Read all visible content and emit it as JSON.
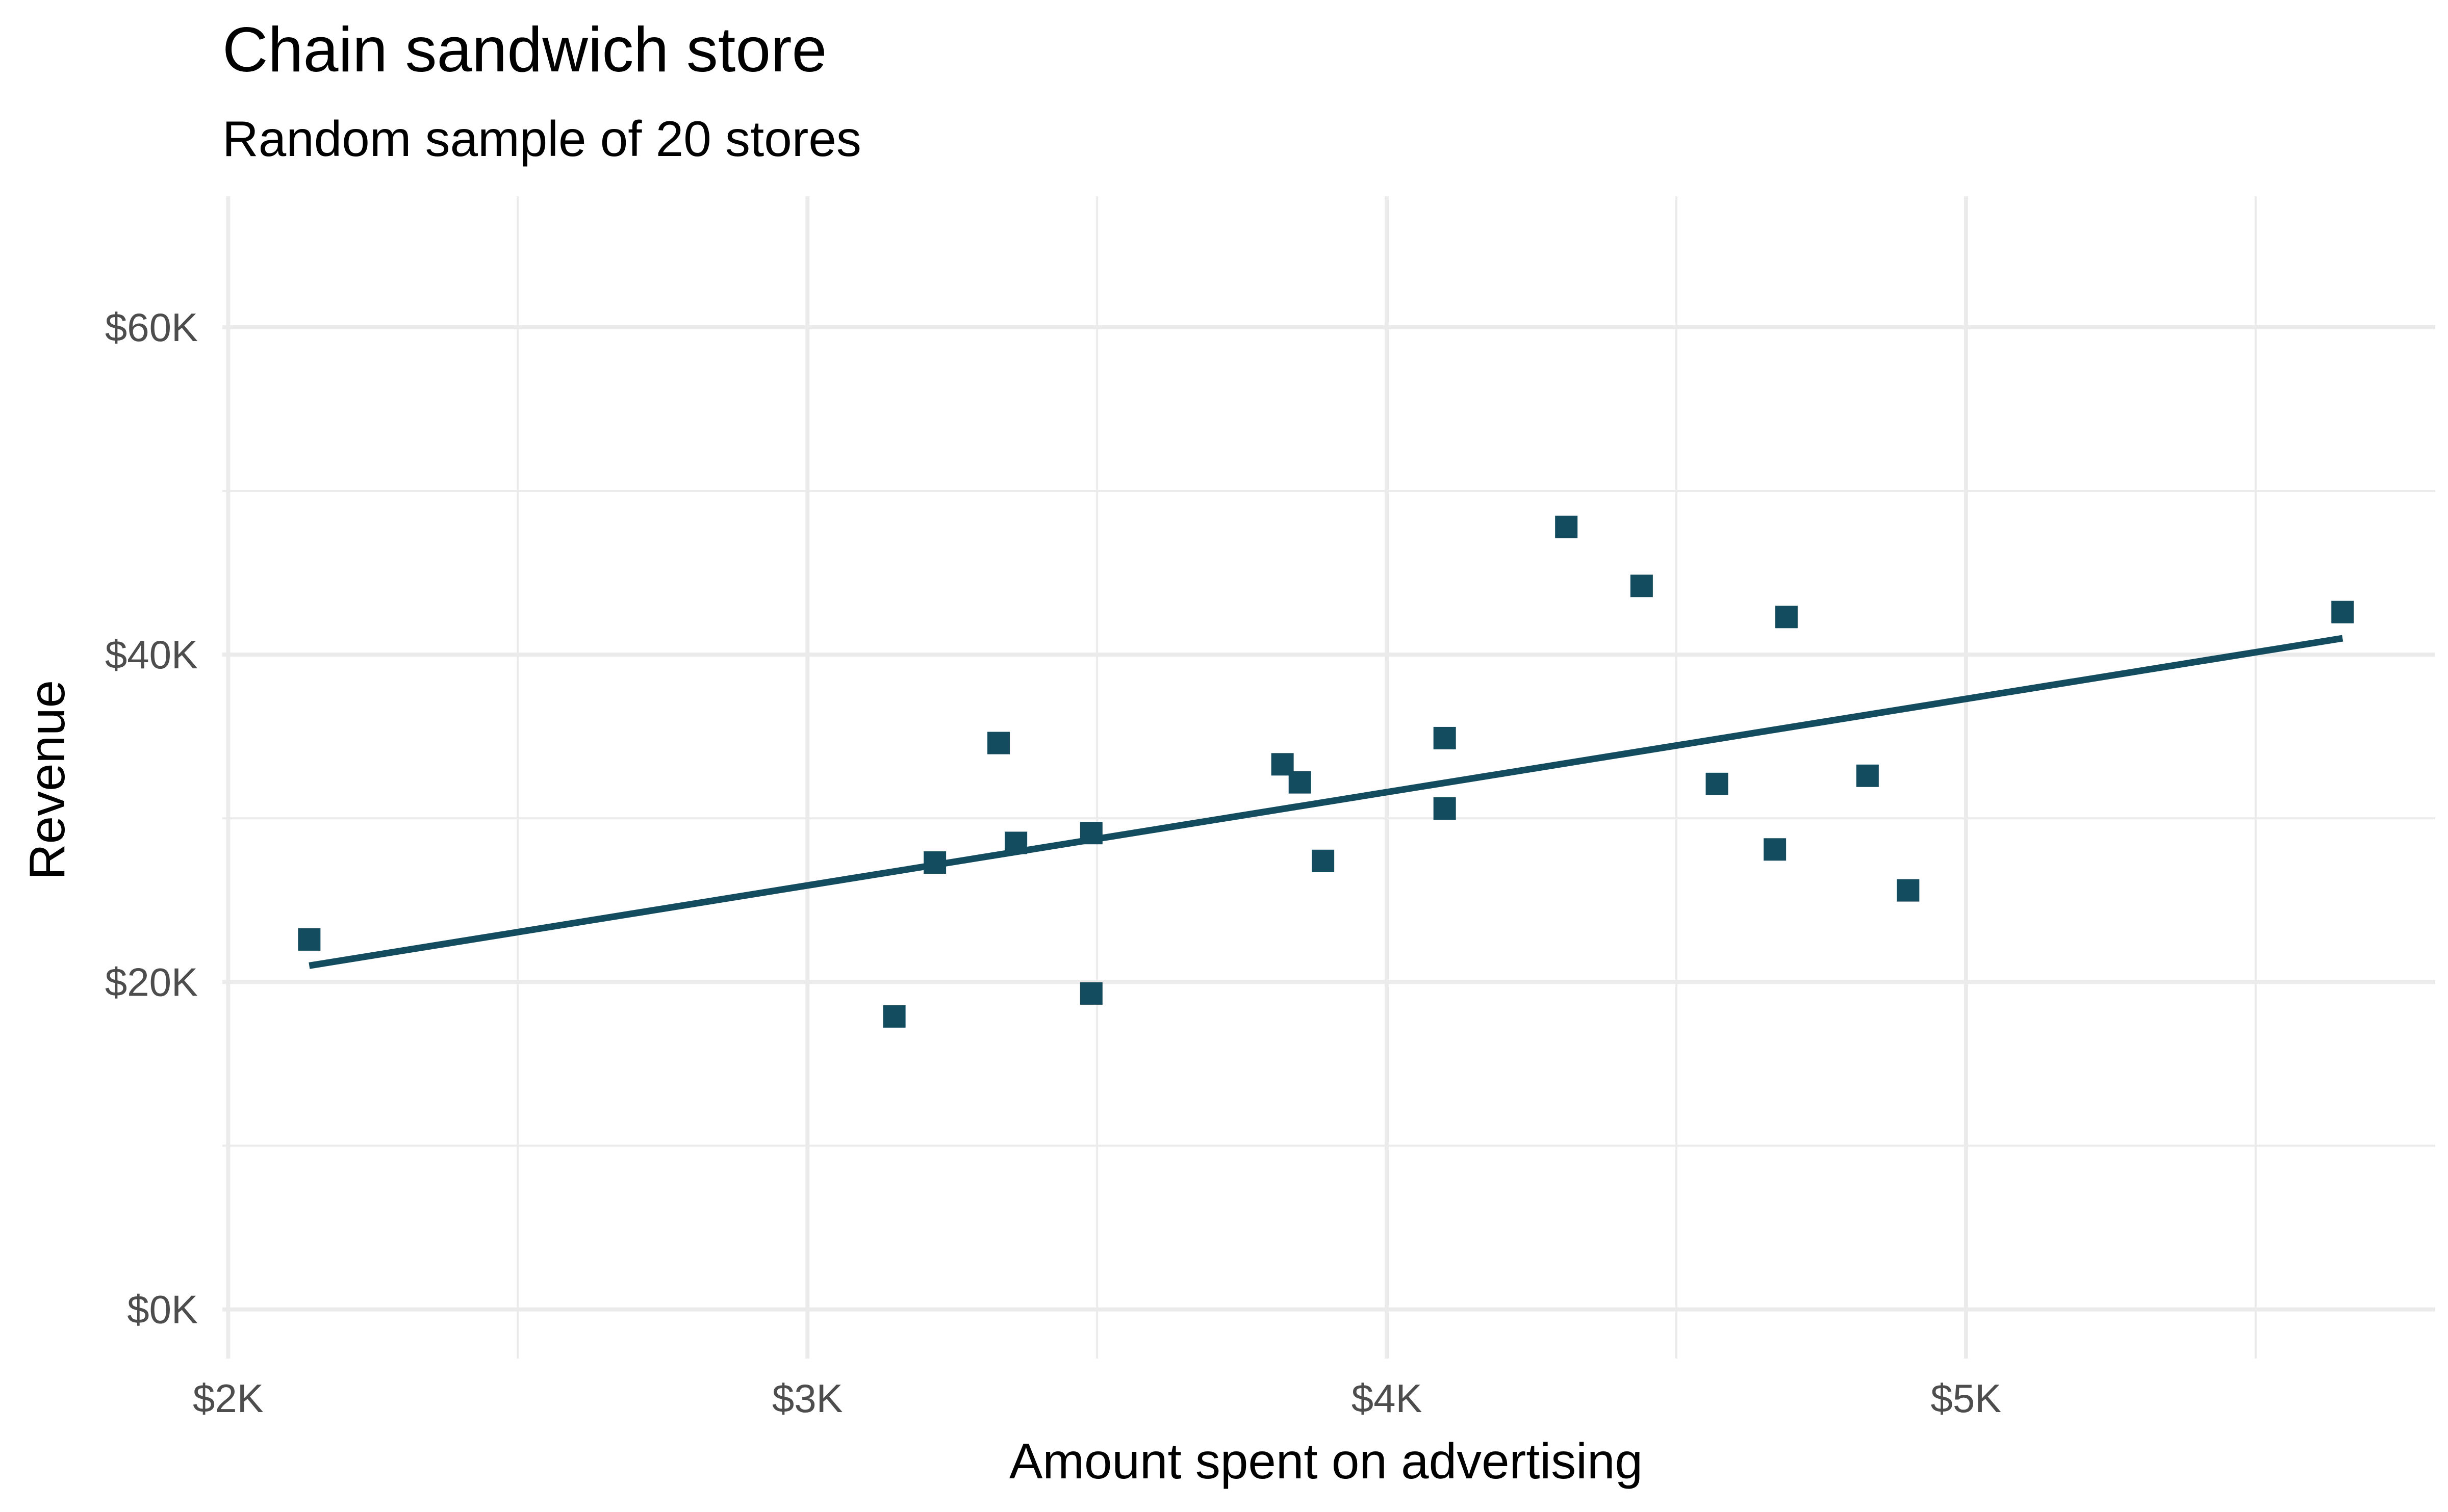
{
  "chart_data": {
    "type": "scatter",
    "title": "Chain sandwich store",
    "subtitle": "Random sample of 20 stores",
    "xlabel": "Amount spent on advertising",
    "ylabel": "Revenue",
    "xlim": [
      1990,
      5810
    ],
    "ylim": [
      -3000,
      68000
    ],
    "x_ticks": [
      2000,
      3000,
      4000,
      5000
    ],
    "x_tick_labels": [
      "$2K",
      "$3K",
      "$4K",
      "$5K"
    ],
    "x_minor_ticks": [
      2500,
      3500,
      4500,
      5500
    ],
    "y_ticks": [
      0,
      20000,
      40000,
      60000
    ],
    "y_tick_labels": [
      "$0K",
      "$20K",
      "$40K",
      "$60K"
    ],
    "y_minor_ticks": [
      10000,
      30000,
      50000
    ],
    "grid": true,
    "marker": "square",
    "color": "#134b5f",
    "points": [
      {
        "x": 2140,
        "y": 22600
      },
      {
        "x": 3150,
        "y": 17900
      },
      {
        "x": 3220,
        "y": 27300
      },
      {
        "x": 3330,
        "y": 34600
      },
      {
        "x": 3360,
        "y": 28500
      },
      {
        "x": 3490,
        "y": 19300
      },
      {
        "x": 3490,
        "y": 29100
      },
      {
        "x": 3820,
        "y": 33300
      },
      {
        "x": 3850,
        "y": 32200
      },
      {
        "x": 3890,
        "y": 27400
      },
      {
        "x": 4100,
        "y": 30600
      },
      {
        "x": 4100,
        "y": 34900
      },
      {
        "x": 4310,
        "y": 47800
      },
      {
        "x": 4440,
        "y": 44200
      },
      {
        "x": 4570,
        "y": 32100
      },
      {
        "x": 4670,
        "y": 28100
      },
      {
        "x": 4690,
        "y": 42300
      },
      {
        "x": 4830,
        "y": 32600
      },
      {
        "x": 4900,
        "y": 25600
      },
      {
        "x": 5650,
        "y": 42600
      }
    ],
    "trend_line": {
      "x": [
        2140,
        5650
      ],
      "y": [
        21000,
        41000
      ]
    }
  }
}
